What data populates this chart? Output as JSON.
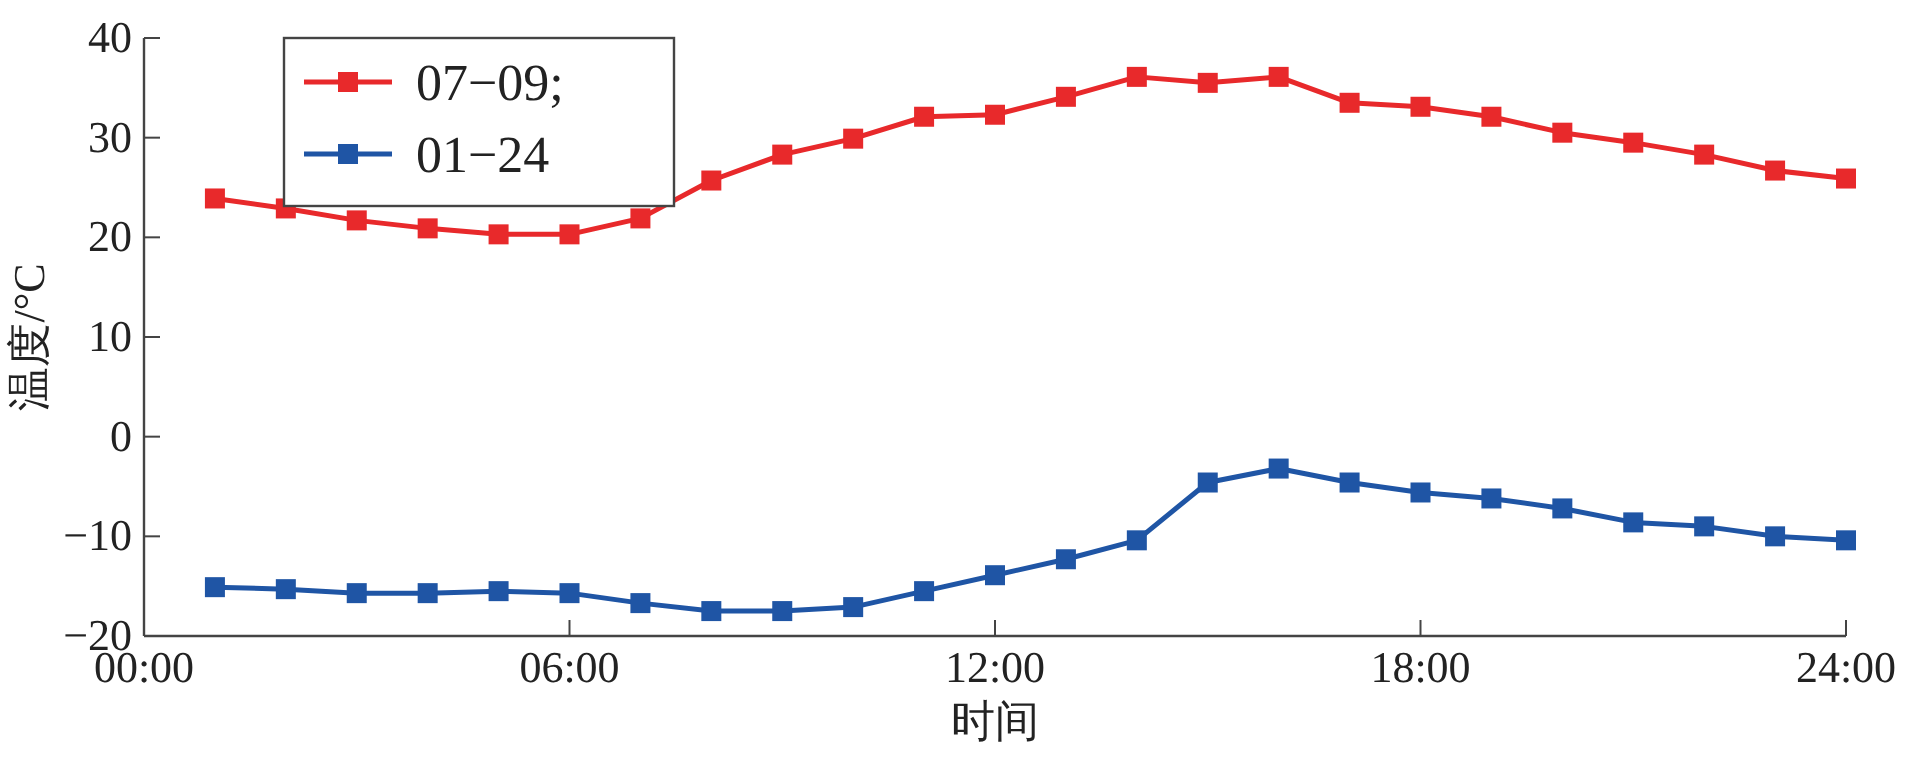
{
  "chart_data": {
    "type": "line",
    "xlabel": "时间",
    "ylabel": "温度/°C",
    "x": [
      1,
      2,
      3,
      4,
      5,
      6,
      7,
      8,
      9,
      10,
      11,
      12,
      13,
      14,
      15,
      16,
      17,
      18,
      19,
      20,
      21,
      22,
      23,
      24
    ],
    "series": [
      {
        "name": "07−09;",
        "color": "#e8292b",
        "values": [
          23.9,
          22.9,
          21.7,
          20.9,
          20.3,
          20.3,
          21.9,
          25.7,
          28.3,
          29.9,
          32.1,
          32.3,
          34.1,
          36.1,
          35.5,
          36.1,
          33.5,
          33.1,
          32.1,
          30.5,
          29.5,
          28.3,
          26.7,
          25.9
        ]
      },
      {
        "name": "01−24",
        "color": "#1f55a5",
        "values": [
          -15.1,
          -15.3,
          -15.7,
          -15.7,
          -15.5,
          -15.7,
          -16.7,
          -17.5,
          -17.5,
          -17.1,
          -15.5,
          -13.9,
          -12.3,
          -10.4,
          -4.6,
          -3.2,
          -4.6,
          -5.6,
          -6.2,
          -7.2,
          -8.6,
          -9.0,
          -10.0,
          -10.4
        ]
      }
    ],
    "xlim": [
      0,
      24
    ],
    "xticks": [
      {
        "value": 0,
        "label": "00:00"
      },
      {
        "value": 6,
        "label": "06:00"
      },
      {
        "value": 12,
        "label": "12:00"
      },
      {
        "value": 18,
        "label": "18:00"
      },
      {
        "value": 24,
        "label": "24:00"
      }
    ],
    "ylim": [
      -20,
      40
    ],
    "yticks": [
      -20,
      -10,
      0,
      10,
      20,
      30,
      40
    ],
    "marker": "square",
    "line_style": "solid",
    "legend": "top left",
    "grid": false
  }
}
